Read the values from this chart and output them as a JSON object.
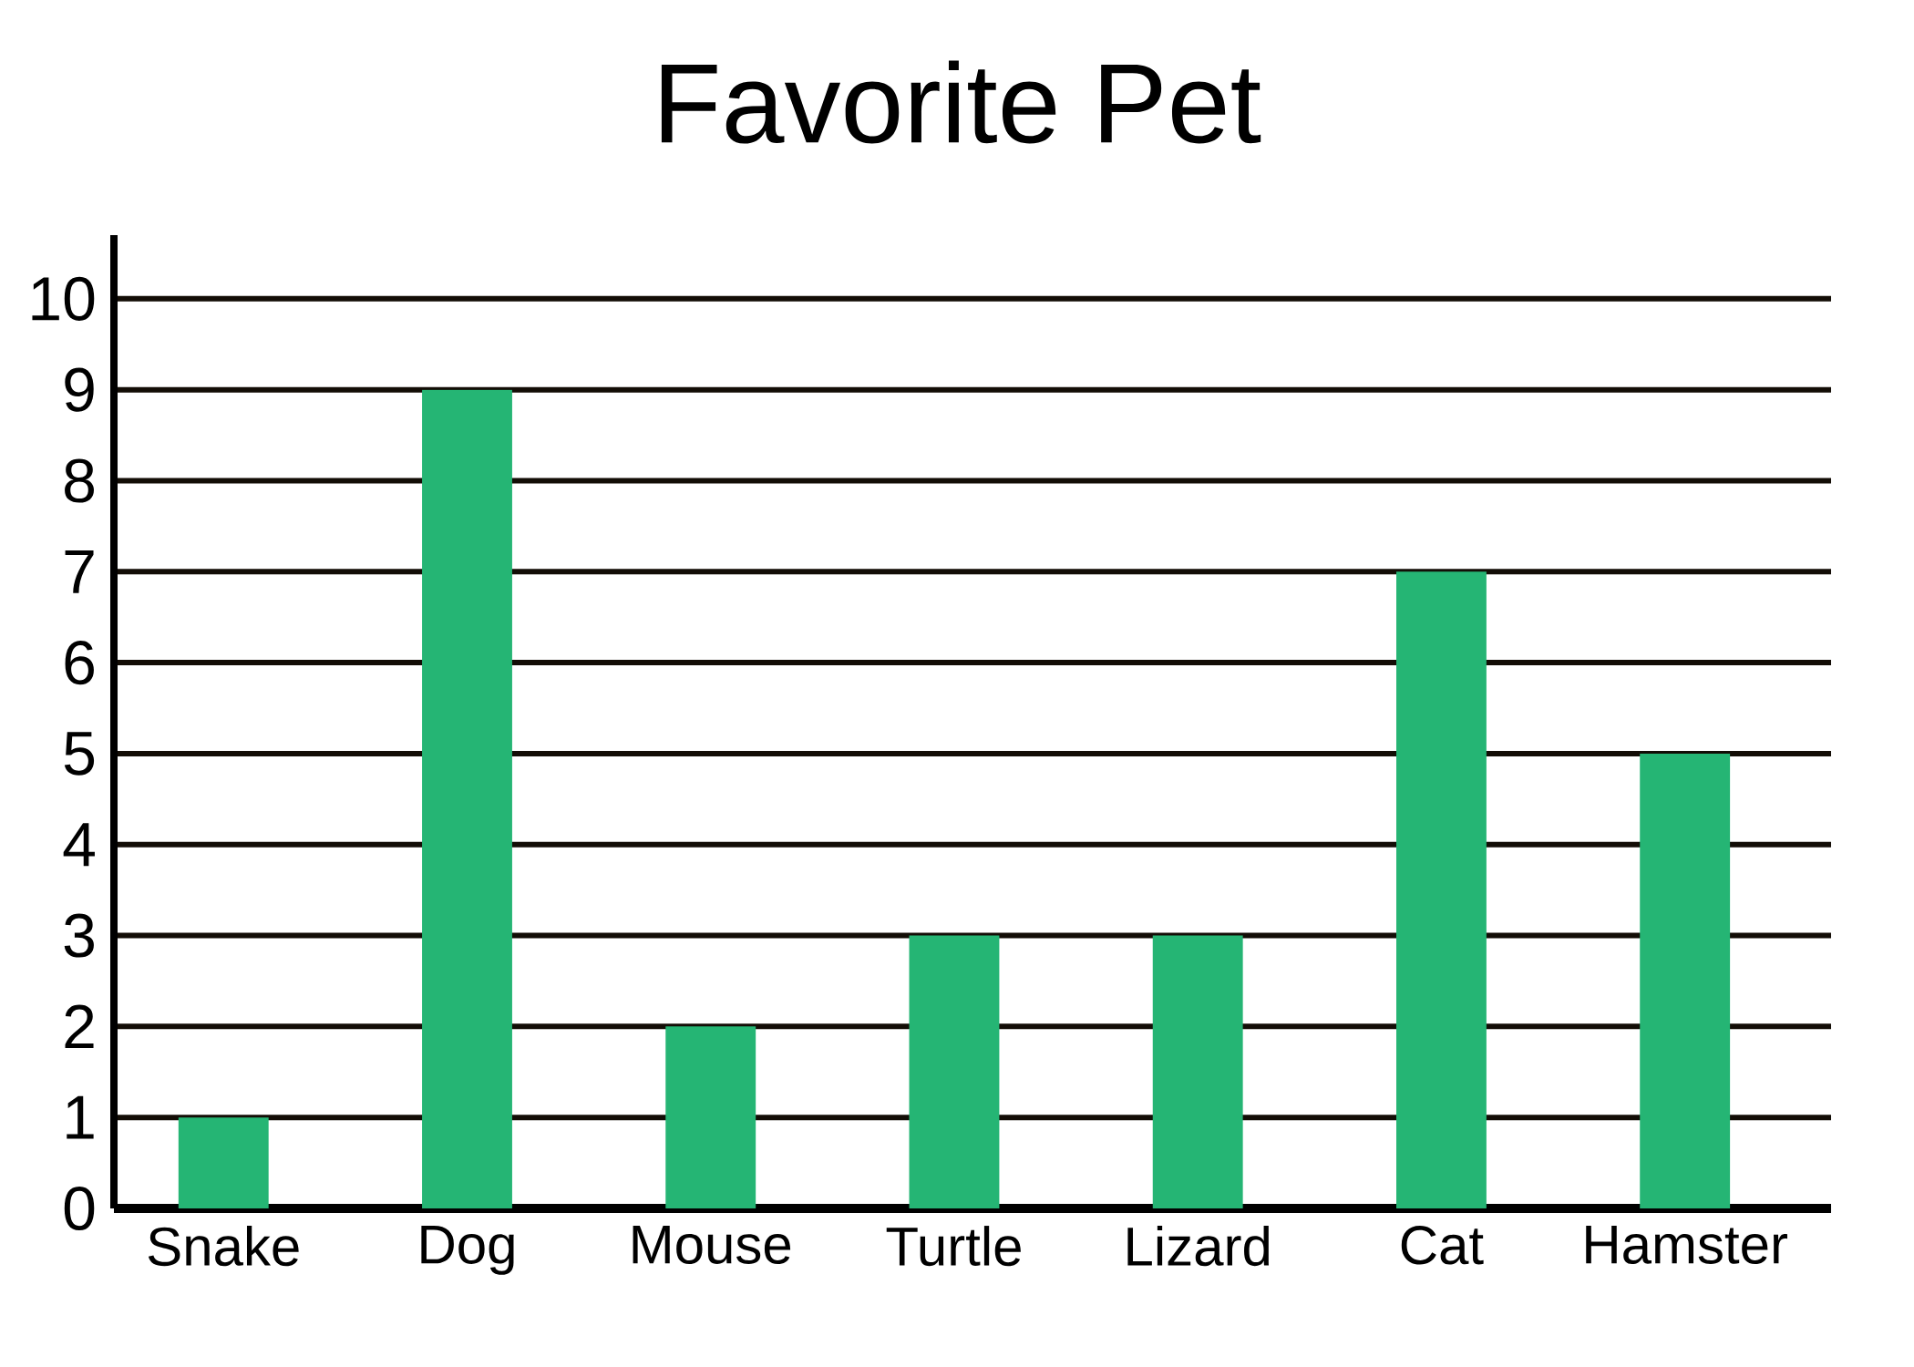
{
  "chart_data": {
    "type": "bar",
    "title": "Favorite Pet",
    "categories": [
      "Snake",
      "Dog",
      "Mouse",
      "Turtle",
      "Lizard",
      "Cat",
      "Hamster"
    ],
    "values": [
      1,
      9,
      2,
      3,
      3,
      7,
      5
    ],
    "color": "#25b574",
    "ylim": [
      0,
      10.7
    ],
    "yticks": [
      0,
      1,
      2,
      3,
      4,
      5,
      6,
      7,
      8,
      9,
      10
    ],
    "grid": "y"
  }
}
